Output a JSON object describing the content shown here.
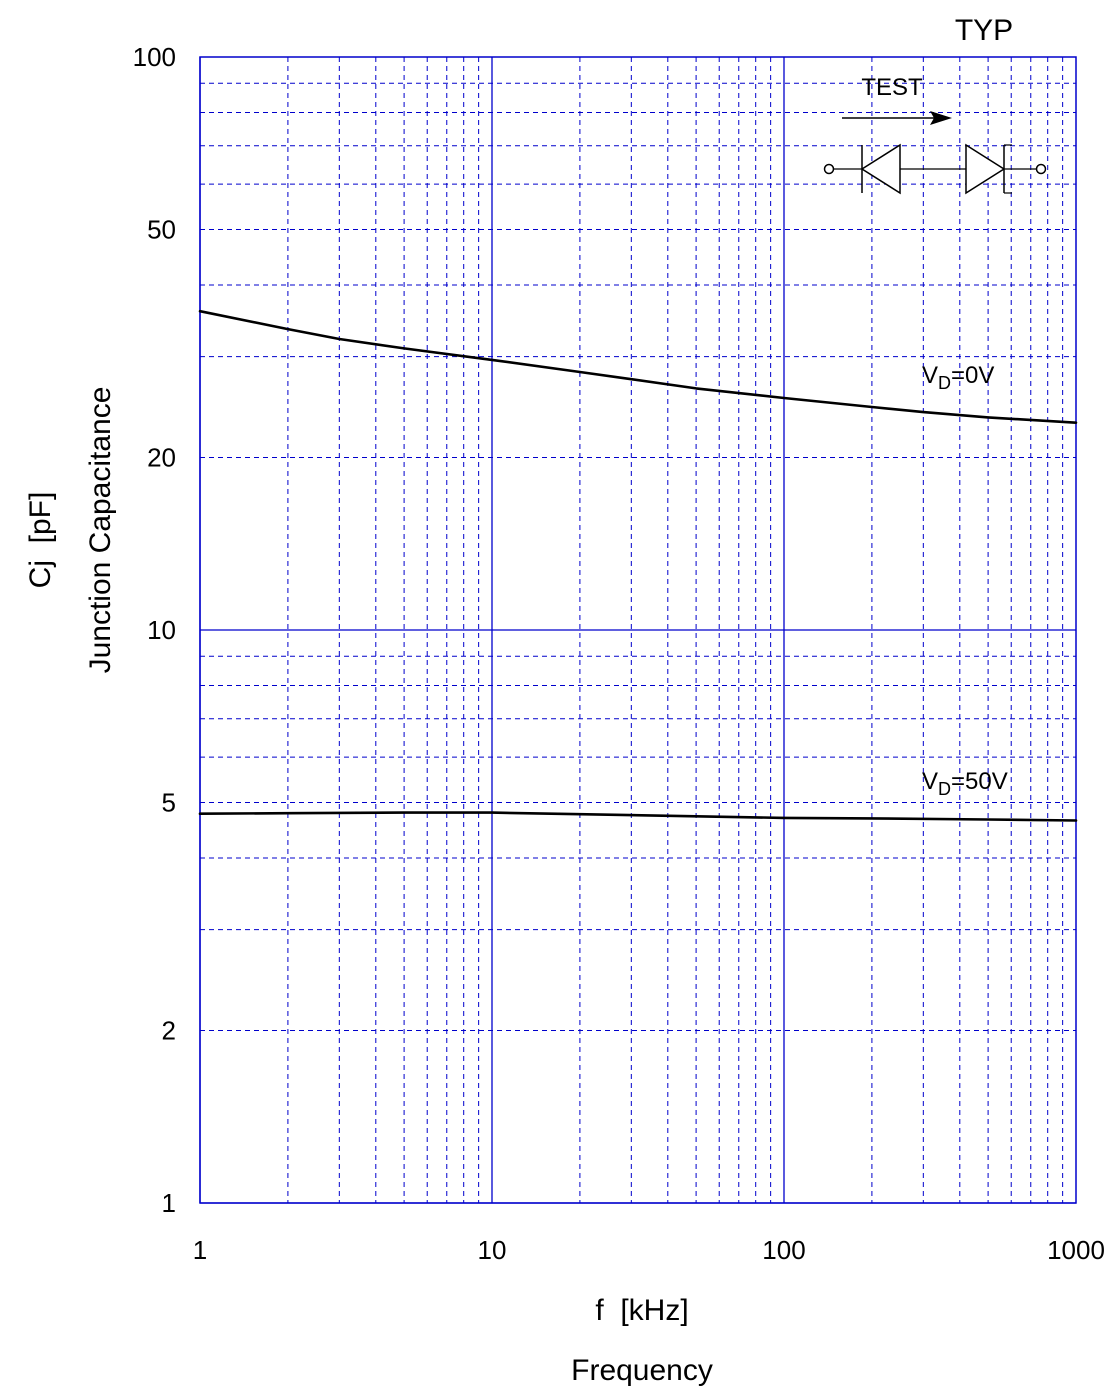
{
  "chart_data": {
    "type": "line",
    "title": "TYP",
    "xlabel": "f  [kHz]",
    "xlabel2": "Frequency",
    "ylabel": "Cj  [pF]",
    "ylabel2": "Junction Capacitance",
    "x_scale": "log",
    "y_scale": "log",
    "xlim": [
      1,
      1000
    ],
    "ylim": [
      1,
      100
    ],
    "x_ticks": [
      1,
      10,
      100,
      1000
    ],
    "x_tick_labels": [
      "1",
      "10",
      "100",
      "1000"
    ],
    "y_ticks": [
      1,
      2,
      5,
      10,
      20,
      50,
      100
    ],
    "y_tick_labels": [
      "1",
      "2",
      "5",
      "10",
      "20",
      "50",
      "100"
    ],
    "grid": true,
    "grid_color": "#0000cc",
    "series": [
      {
        "name": "VD=0V",
        "label_main": "V",
        "label_sub": "D",
        "label_tail": "=0V",
        "color": "#000000",
        "x": [
          1,
          2,
          3,
          5,
          10,
          20,
          30,
          50,
          100,
          200,
          300,
          500,
          1000
        ],
        "y": [
          36,
          33.5,
          32.2,
          31,
          29.6,
          28.2,
          27.4,
          26.4,
          25.4,
          24.5,
          24,
          23.5,
          23
        ]
      },
      {
        "name": "VD=50V",
        "label_main": "V",
        "label_sub": "D",
        "label_tail": "=50V",
        "color": "#000000",
        "x": [
          1,
          2,
          5,
          10,
          20,
          50,
          100,
          200,
          500,
          1000
        ],
        "y": [
          4.78,
          4.79,
          4.8,
          4.8,
          4.77,
          4.73,
          4.7,
          4.69,
          4.67,
          4.65
        ]
      }
    ],
    "inset": {
      "label": "TEST"
    }
  }
}
